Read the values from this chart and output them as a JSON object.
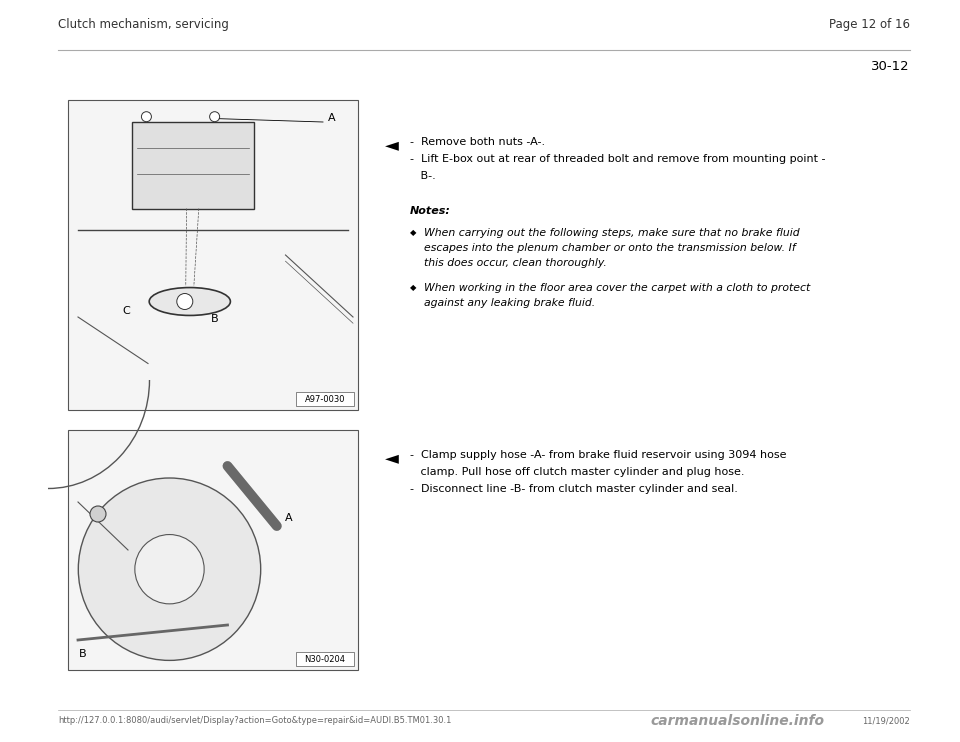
{
  "bg_color": "#ffffff",
  "header_left": "Clutch mechanism, servicing",
  "header_right": "Page 12 of 16",
  "section_number": "30-12",
  "bullet1_lines": [
    "-  Remove both nuts -A-.",
    "-  Lift E-box out at rear of threaded bolt and remove from mounting point -",
    "   B-."
  ],
  "notes_label": "Notes:",
  "note1_lines": [
    "When carrying out the following steps, make sure that no brake fluid",
    "escapes into the plenum chamber or onto the transmission below. If",
    "this does occur, clean thoroughly."
  ],
  "note2_lines": [
    "When working in the floor area cover the carpet with a cloth to protect",
    "against any leaking brake fluid."
  ],
  "bullet2_lines": [
    "-  Clamp supply hose -A- from brake fluid reservoir using 3094 hose",
    "   clamp. Pull hose off clutch master cylinder and plug hose.",
    "-  Disconnect line -B- from clutch master cylinder and seal."
  ],
  "footer_url": "http://127.0.0.1:8080/audi/servlet/Display?action=Goto&type=repair&id=AUDI.B5.TM01.30.1",
  "footer_date": "11/19/2002",
  "footer_watermark": "carmanualsonline.info",
  "img1_label": "A97-0030",
  "img2_label": "N30-0204",
  "font_size_header": 8.5,
  "font_size_body": 8.0,
  "font_size_notes_body": 7.8,
  "font_size_section": 9.5,
  "font_size_footer": 6.0,
  "font_size_watermark": 10
}
